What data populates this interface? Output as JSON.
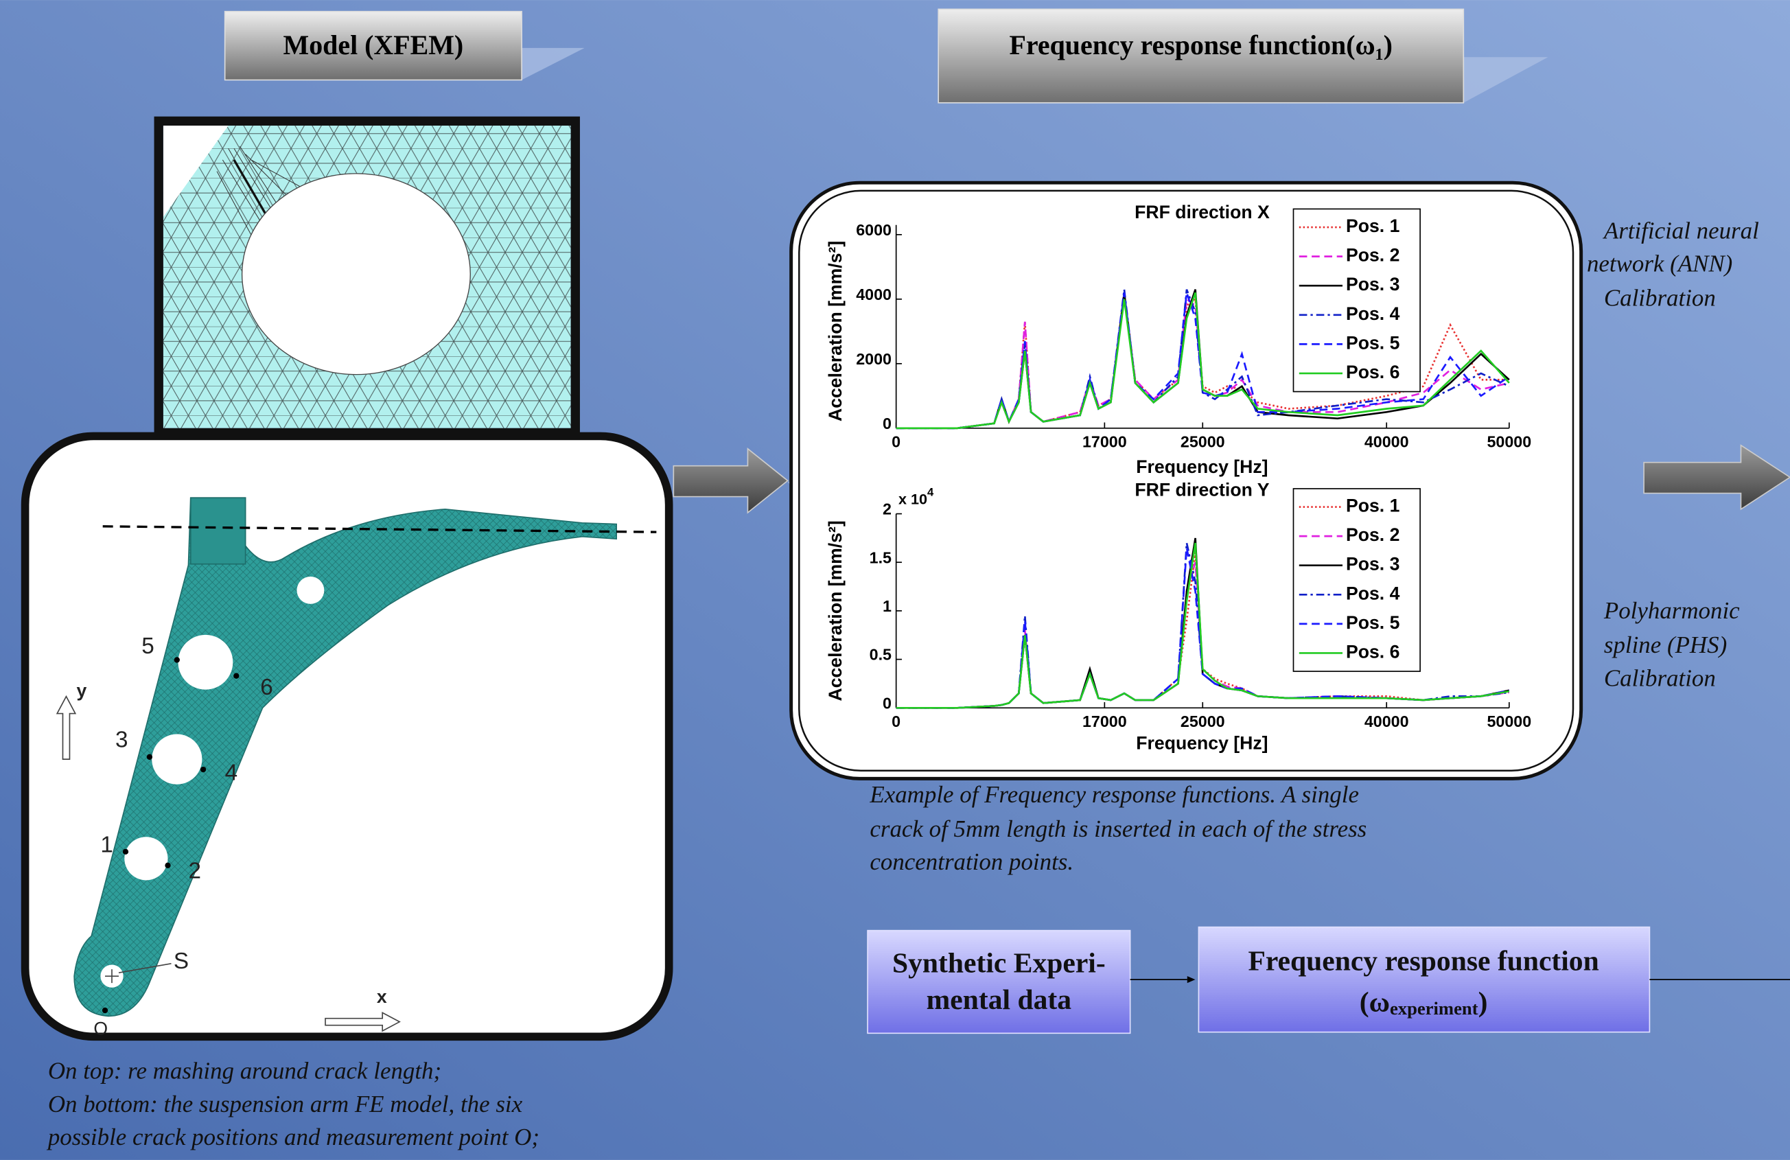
{
  "slide": {
    "model_title": "Model (XFEM)",
    "frf_title": "Frequency response function(ω₁)",
    "model_caption": [
      "On top: re mashing around crack length;",
      "On bottom: the suspension arm FE model, the six",
      "possible crack positions and measurement point O;"
    ],
    "frf_caption": [
      "Example of Frequency response functions. A single",
      "crack of 5mm length is inserted in each of the stress",
      "concentration points."
    ],
    "ann_text": [
      "Artificial neural",
      "network (ANN)",
      "Calibration"
    ],
    "phs_text": [
      "Polyharmonic",
      "spline (PHS)",
      "Calibration"
    ],
    "synthetic_box": [
      "Synthetic Experi-",
      "mental data"
    ],
    "experiment_box": [
      "Frequency response function",
      "(ω",
      "experiment",
      ")"
    ],
    "arm_labels": {
      "points": [
        "1",
        "2",
        "3",
        "4",
        "5",
        "6"
      ],
      "s": "S",
      "o": "O",
      "x": "x",
      "y": "y"
    }
  },
  "chart_data": [
    {
      "type": "line",
      "title": "FRF direction X",
      "xlabel": "Frequency [Hz]",
      "ylabel": "Acceleration [mm/s²]",
      "x": [
        0,
        5000,
        8000,
        8600,
        9200,
        10000,
        10500,
        11000,
        12000,
        15000,
        15800,
        16500,
        17500,
        18600,
        19500,
        21000,
        23000,
        23700,
        24400,
        25000,
        26000,
        27000,
        28200,
        29500,
        32000,
        36000,
        40000,
        43000,
        45200,
        47700,
        50000
      ],
      "xlim": [
        0,
        50000
      ],
      "xticks": [
        0,
        17000,
        25000,
        40000,
        50000
      ],
      "ylim": [
        0,
        6300
      ],
      "yticks": [
        0,
        2000,
        4000,
        6000
      ],
      "legend": "upper right",
      "series": [
        {
          "name": "Pos. 1",
          "color": "#e83030",
          "dash": "dotted",
          "values": [
            0,
            0,
            150,
            800,
            200,
            900,
            3300,
            500,
            200,
            500,
            1500,
            700,
            900,
            4200,
            1500,
            900,
            1500,
            3800,
            4000,
            1300,
            1100,
            1300,
            1200,
            800,
            600,
            700,
            1000,
            1300,
            3200,
            1500,
            1500
          ]
        },
        {
          "name": "Pos. 2",
          "color": "#e020e0",
          "dash": "dashed",
          "values": [
            0,
            0,
            150,
            800,
            200,
            900,
            3300,
            500,
            200,
            500,
            1500,
            700,
            900,
            4100,
            1500,
            900,
            1500,
            4000,
            3800,
            1200,
            1000,
            1100,
            1500,
            700,
            500,
            500,
            800,
            1100,
            1800,
            1200,
            1400
          ]
        },
        {
          "name": "Pos. 3",
          "color": "#000000",
          "dash": "solid",
          "values": [
            0,
            0,
            150,
            900,
            200,
            800,
            2400,
            500,
            200,
            400,
            1400,
            600,
            800,
            4200,
            1400,
            800,
            1400,
            3500,
            4300,
            1200,
            1000,
            1000,
            1300,
            500,
            400,
            300,
            500,
            700,
            1400,
            2300,
            1500
          ]
        },
        {
          "name": "Pos. 4",
          "color": "#1020c8",
          "dash": "dashdot",
          "values": [
            0,
            0,
            150,
            900,
            200,
            800,
            2600,
            500,
            200,
            400,
            1600,
            600,
            900,
            4300,
            1400,
            800,
            1600,
            4300,
            3600,
            1100,
            900,
            1200,
            1600,
            400,
            500,
            700,
            900,
            800,
            1200,
            1700,
            1300
          ]
        },
        {
          "name": "Pos. 5",
          "color": "#1a1aff",
          "dash": "dashed",
          "values": [
            0,
            0,
            150,
            900,
            200,
            900,
            2700,
            500,
            200,
            400,
            1500,
            600,
            900,
            4200,
            1400,
            900,
            1700,
            4200,
            3400,
            1100,
            1000,
            1100,
            2300,
            500,
            500,
            600,
            800,
            900,
            2200,
            1000,
            1600
          ]
        },
        {
          "name": "Pos. 6",
          "color": "#22cc22",
          "dash": "solid",
          "values": [
            0,
            0,
            150,
            800,
            200,
            800,
            2400,
            500,
            200,
            400,
            1400,
            600,
            800,
            4000,
            1400,
            800,
            1400,
            3400,
            4200,
            1200,
            1000,
            1000,
            1200,
            600,
            500,
            400,
            600,
            700,
            1500,
            2400,
            1400
          ]
        }
      ]
    },
    {
      "type": "line",
      "title": "FRF direction Y",
      "xlabel": "Frequency [Hz]",
      "ylabel": "Acceleration [mm/s²]",
      "y_multiplier": "x 10",
      "y_multiplier_exponent": "4",
      "x": [
        0,
        5000,
        8000,
        8600,
        9200,
        10000,
        10500,
        11000,
        12000,
        15000,
        15800,
        16500,
        17500,
        18600,
        19500,
        21000,
        23000,
        23700,
        24400,
        25000,
        26000,
        27000,
        28200,
        29500,
        32000,
        36000,
        40000,
        43000,
        45200,
        47700,
        50000
      ],
      "xlim": [
        0,
        50000
      ],
      "xticks": [
        0,
        17000,
        25000,
        40000,
        50000
      ],
      "ylim": [
        0,
        2
      ],
      "yticks": [
        0,
        0.5,
        1,
        1.5,
        2
      ],
      "legend": "upper right",
      "series": [
        {
          "name": "Pos. 1",
          "color": "#e83030",
          "dash": "dotted",
          "values": [
            0,
            0,
            0.02,
            0.03,
            0.05,
            0.15,
            0.75,
            0.15,
            0.05,
            0.08,
            0.35,
            0.1,
            0.08,
            0.15,
            0.08,
            0.08,
            0.3,
            0.9,
            1.6,
            0.4,
            0.3,
            0.25,
            0.2,
            0.12,
            0.1,
            0.12,
            0.12,
            0.08,
            0.1,
            0.12,
            0.18
          ]
        },
        {
          "name": "Pos. 2",
          "color": "#e020e0",
          "dash": "dashed",
          "values": [
            0,
            0,
            0.02,
            0.03,
            0.05,
            0.15,
            0.8,
            0.15,
            0.05,
            0.08,
            0.35,
            0.1,
            0.08,
            0.15,
            0.08,
            0.08,
            0.25,
            1.2,
            1.5,
            0.4,
            0.28,
            0.22,
            0.2,
            0.12,
            0.1,
            0.12,
            0.1,
            0.08,
            0.1,
            0.12,
            0.16
          ]
        },
        {
          "name": "Pos. 3",
          "color": "#000000",
          "dash": "solid",
          "values": [
            0,
            0,
            0.02,
            0.03,
            0.05,
            0.15,
            0.75,
            0.15,
            0.05,
            0.08,
            0.4,
            0.1,
            0.08,
            0.15,
            0.08,
            0.08,
            0.25,
            1.2,
            1.75,
            0.35,
            0.25,
            0.2,
            0.18,
            0.12,
            0.1,
            0.1,
            0.1,
            0.08,
            0.1,
            0.12,
            0.18
          ]
        },
        {
          "name": "Pos. 4",
          "color": "#1020c8",
          "dash": "dashdot",
          "values": [
            0,
            0,
            0.02,
            0.03,
            0.05,
            0.15,
            0.95,
            0.15,
            0.05,
            0.08,
            0.35,
            0.1,
            0.08,
            0.15,
            0.08,
            0.08,
            0.3,
            1.7,
            1.3,
            0.35,
            0.25,
            0.2,
            0.18,
            0.12,
            0.1,
            0.12,
            0.1,
            0.08,
            0.12,
            0.12,
            0.16
          ]
        },
        {
          "name": "Pos. 5",
          "color": "#1a1aff",
          "dash": "dashed",
          "values": [
            0,
            0,
            0.02,
            0.03,
            0.05,
            0.15,
            0.9,
            0.15,
            0.05,
            0.08,
            0.35,
            0.1,
            0.08,
            0.15,
            0.08,
            0.08,
            0.3,
            1.65,
            1.2,
            0.35,
            0.25,
            0.2,
            0.2,
            0.12,
            0.1,
            0.12,
            0.1,
            0.08,
            0.1,
            0.12,
            0.18
          ]
        },
        {
          "name": "Pos. 6",
          "color": "#22cc22",
          "dash": "solid",
          "values": [
            0,
            0,
            0.02,
            0.03,
            0.05,
            0.15,
            0.75,
            0.15,
            0.05,
            0.08,
            0.35,
            0.1,
            0.08,
            0.15,
            0.08,
            0.08,
            0.25,
            1.1,
            1.7,
            0.4,
            0.28,
            0.2,
            0.18,
            0.12,
            0.1,
            0.1,
            0.1,
            0.08,
            0.1,
            0.12,
            0.17
          ]
        }
      ]
    }
  ]
}
